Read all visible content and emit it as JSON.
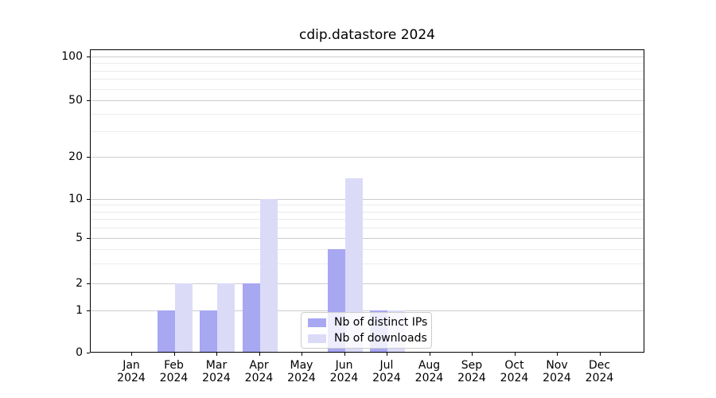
{
  "title": "cdip.datastore 2024",
  "chart_data": {
    "type": "bar",
    "title": "cdip.datastore 2024",
    "categories": [
      "Jan",
      "Feb",
      "Mar",
      "Apr",
      "May",
      "Jun",
      "Jul",
      "Aug",
      "Sep",
      "Oct",
      "Nov",
      "Dec"
    ],
    "category_year": "2024",
    "series": [
      {
        "name": "Nb of distinct IPs",
        "color": "#a7a7f2",
        "values": [
          0,
          1,
          1,
          2,
          0,
          4,
          1,
          0,
          0,
          0,
          0,
          0
        ]
      },
      {
        "name": "Nb of downloads",
        "color": "#dbdbf8",
        "values": [
          0,
          2,
          2,
          10,
          0,
          14,
          1,
          0,
          0,
          0,
          0,
          0
        ]
      }
    ],
    "xlabel": "",
    "ylabel": "",
    "yscale": "symlog",
    "ylim": [
      0,
      110
    ],
    "yticks": [
      0,
      1,
      2,
      5,
      10,
      20,
      50,
      100
    ],
    "minor_yticks": [
      3,
      4,
      6,
      7,
      8,
      9,
      30,
      40,
      60,
      70,
      80,
      90
    ],
    "grid": "horizontal major+minor",
    "legend_position": "lower center inside plot"
  }
}
